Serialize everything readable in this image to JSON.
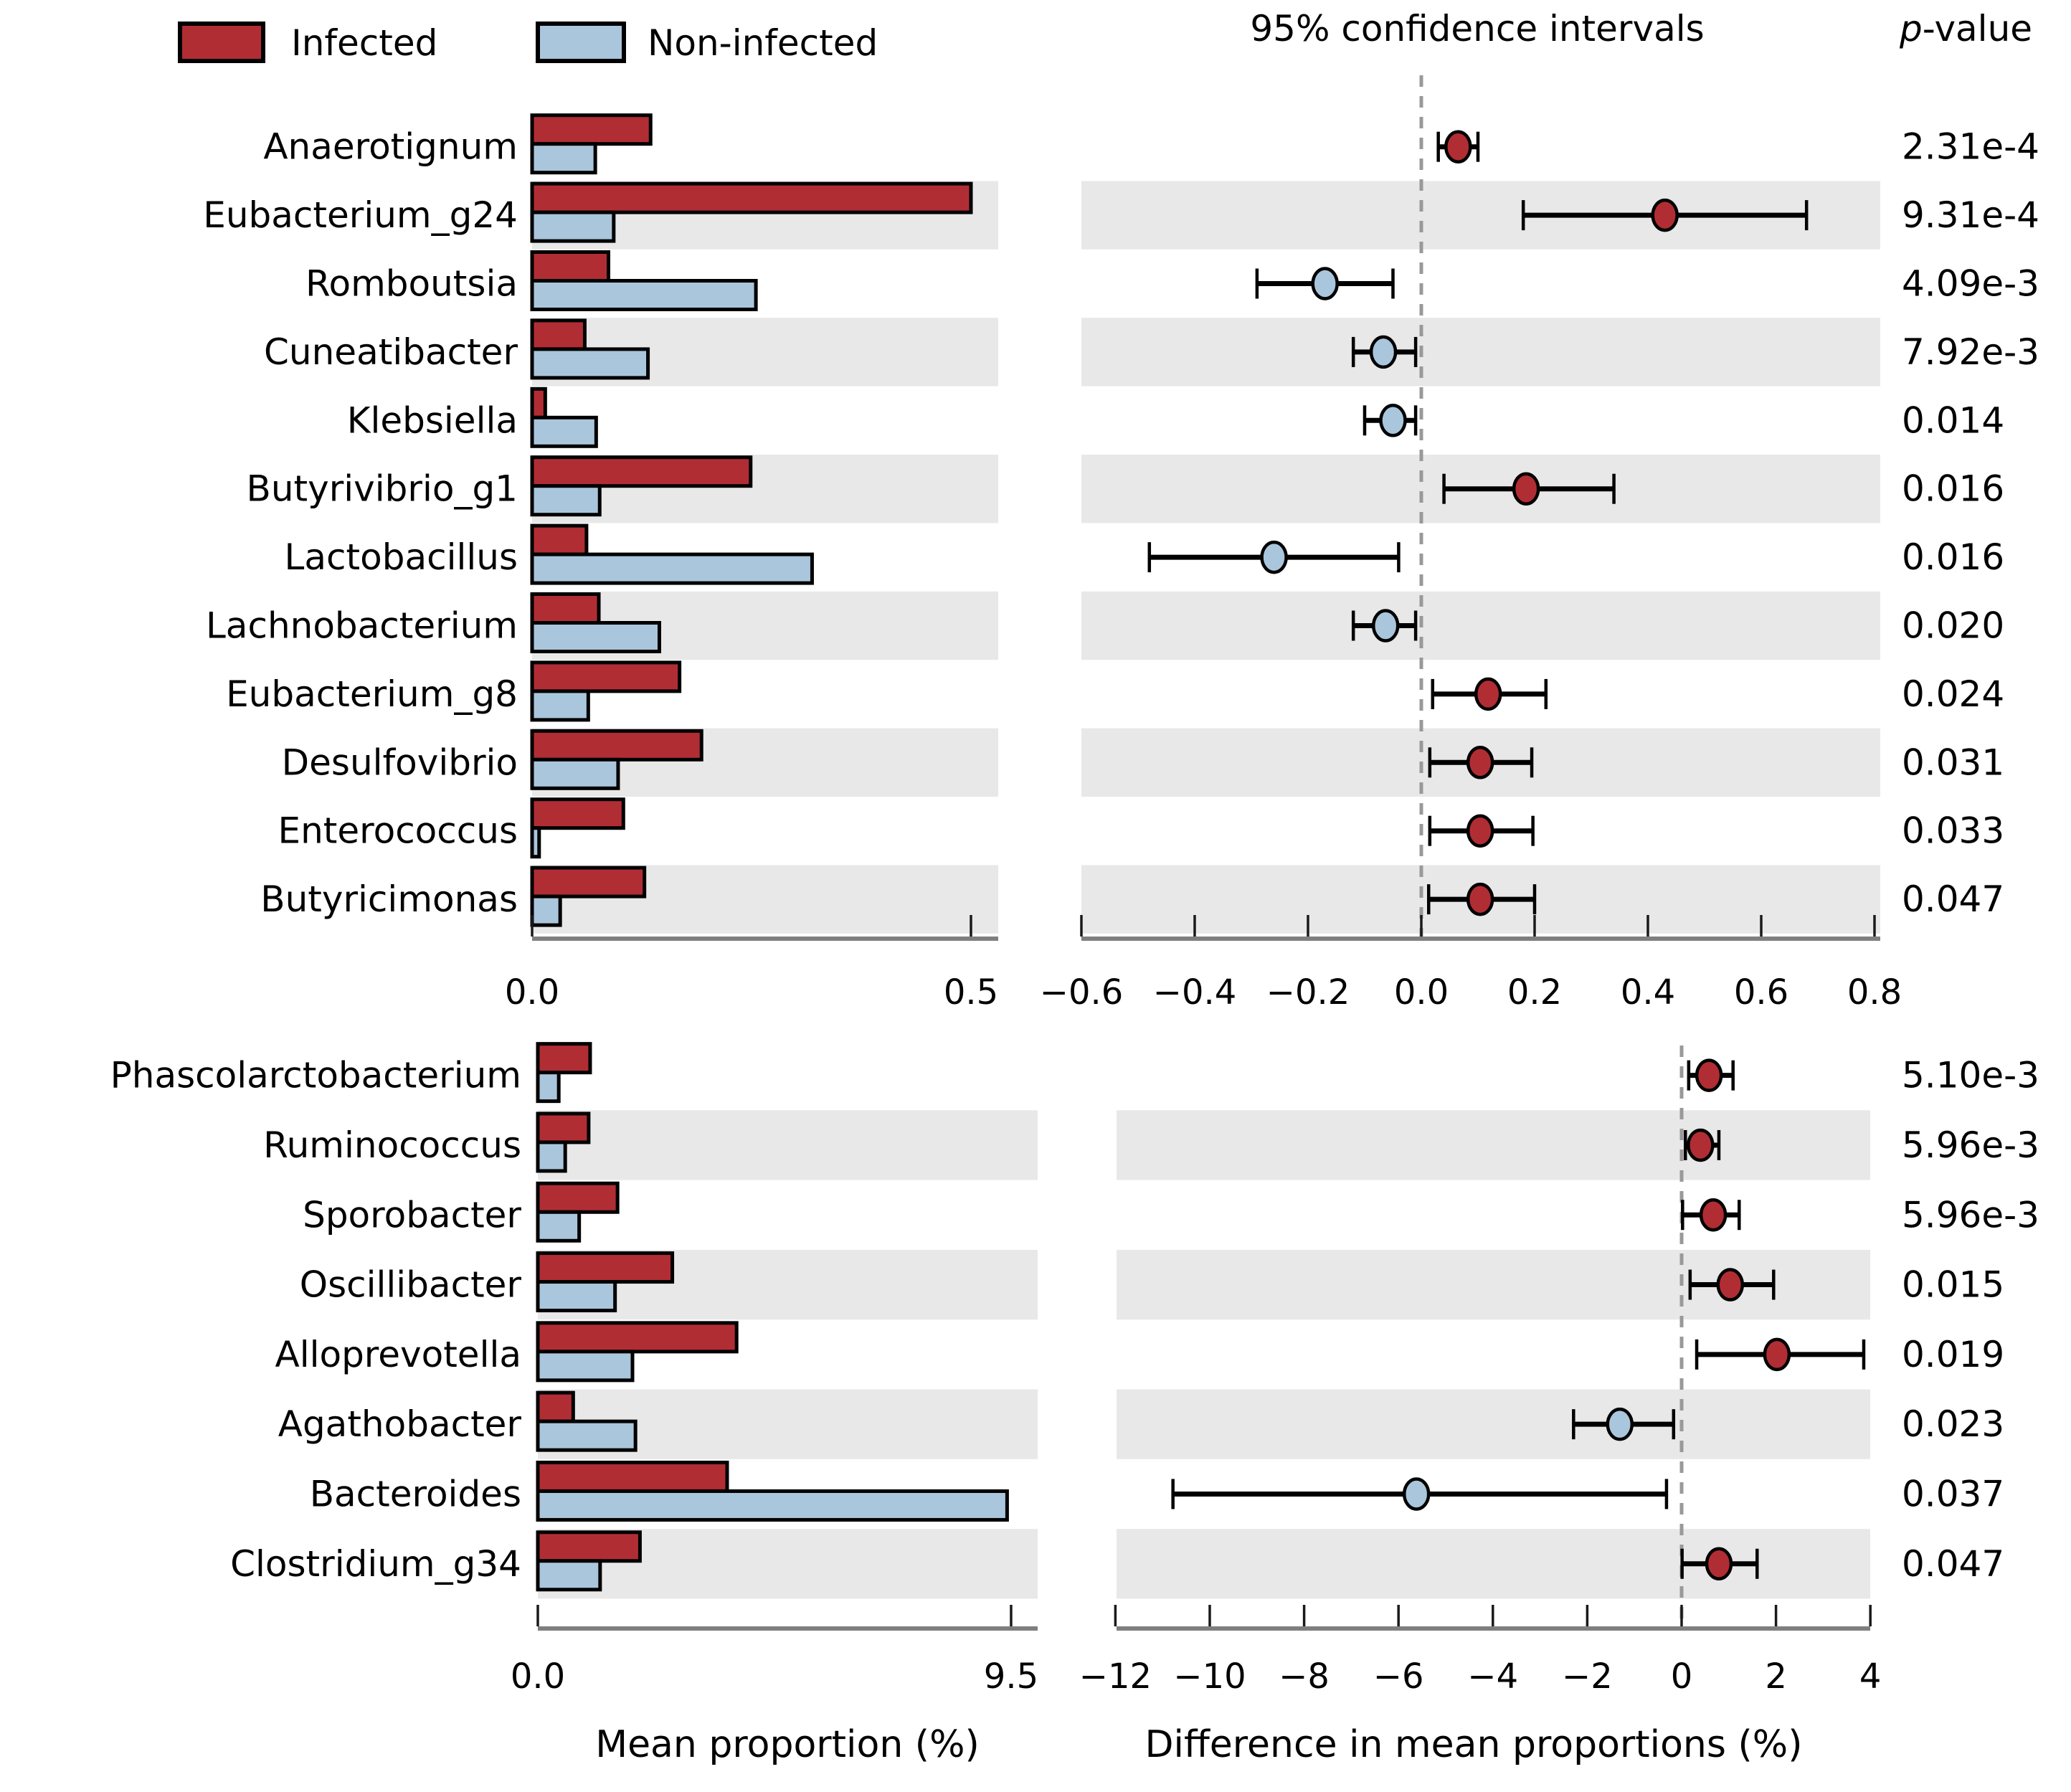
{
  "figure": {
    "legend": {
      "infected_label": "Infected",
      "noninfected_label": "Non-infected"
    },
    "header": {
      "ci_title": "95% confidence intervals",
      "pvalue_italic": "p",
      "pvalue_rest": "-value"
    },
    "captions": {
      "left": "Mean proportion (%)",
      "right": "Difference in mean proportions (%)"
    },
    "colors": {
      "infected": "#b12d34",
      "noninfected": "#a9c6dc",
      "stripe": "#e8e8e8",
      "spine": "#7f7f7f",
      "tick": "#1a1a1a",
      "zero_line": "#999999",
      "bar_edge": "#000000"
    }
  },
  "chart_data": [
    {
      "type": "extended-error-bar",
      "panel": "top",
      "legend_position": "top-left",
      "grid": false,
      "left_axis": {
        "unit": "percent",
        "range": [
          0,
          0.53
        ],
        "ticks": [
          {
            "v": 0,
            "label": "0.0"
          },
          {
            "v": 0.5,
            "label": "0.5"
          }
        ]
      },
      "diff_axis": {
        "unit": "percent",
        "range": [
          -0.61,
          0.81
        ],
        "zero_dashed_line": true,
        "ticks": [
          {
            "v": -0.6,
            "label": "−0.6"
          },
          {
            "v": -0.4,
            "label": "−0.4"
          },
          {
            "v": -0.2,
            "label": "−0.2"
          },
          {
            "v": 0.0,
            "label": "0.0"
          },
          {
            "v": 0.2,
            "label": "0.2"
          },
          {
            "v": 0.4,
            "label": "0.4"
          },
          {
            "v": 0.6,
            "label": "0.6"
          },
          {
            "v": 0.8,
            "label": "0.8"
          }
        ]
      },
      "rows": [
        {
          "taxon": "Anaerotignum",
          "infected_mean_pct": 0.135,
          "noninfected_mean_pct": 0.072,
          "diff": 0.065,
          "ci": [
            0.03,
            0.1
          ],
          "enriched": "infected",
          "p": "2.31e-4"
        },
        {
          "taxon": "Eubacterium_g24",
          "infected_mean_pct": 0.5,
          "noninfected_mean_pct": 0.093,
          "diff": 0.43,
          "ci": [
            0.18,
            0.68
          ],
          "enriched": "infected",
          "p": "9.31e-4"
        },
        {
          "taxon": "Romboutsia",
          "infected_mean_pct": 0.087,
          "noninfected_mean_pct": 0.255,
          "diff": -0.17,
          "ci": [
            -0.29,
            -0.05
          ],
          "enriched": "noninfected",
          "p": "4.09e-3"
        },
        {
          "taxon": "Cuneatibacter",
          "infected_mean_pct": 0.06,
          "noninfected_mean_pct": 0.132,
          "diff": -0.067,
          "ci": [
            -0.12,
            -0.01
          ],
          "enriched": "noninfected",
          "p": "7.92e-3"
        },
        {
          "taxon": "Klebsiella",
          "infected_mean_pct": 0.015,
          "noninfected_mean_pct": 0.073,
          "diff": -0.05,
          "ci": [
            -0.1,
            -0.01
          ],
          "enriched": "noninfected",
          "p": "0.014"
        },
        {
          "taxon": "Butyrivibrio_g1",
          "infected_mean_pct": 0.249,
          "noninfected_mean_pct": 0.077,
          "diff": 0.185,
          "ci": [
            0.04,
            0.34
          ],
          "enriched": "infected",
          "p": "0.016"
        },
        {
          "taxon": "Lactobacillus",
          "infected_mean_pct": 0.062,
          "noninfected_mean_pct": 0.319,
          "diff": -0.26,
          "ci": [
            -0.48,
            -0.04
          ],
          "enriched": "noninfected",
          "p": "0.016"
        },
        {
          "taxon": "Lachnobacterium",
          "infected_mean_pct": 0.076,
          "noninfected_mean_pct": 0.145,
          "diff": -0.063,
          "ci": [
            -0.12,
            -0.01
          ],
          "enriched": "noninfected",
          "p": "0.020"
        },
        {
          "taxon": "Eubacterium_g8",
          "infected_mean_pct": 0.168,
          "noninfected_mean_pct": 0.064,
          "diff": 0.118,
          "ci": [
            0.02,
            0.22
          ],
          "enriched": "infected",
          "p": "0.024"
        },
        {
          "taxon": "Desulfovibrio",
          "infected_mean_pct": 0.193,
          "noninfected_mean_pct": 0.098,
          "diff": 0.104,
          "ci": [
            0.015,
            0.195
          ],
          "enriched": "infected",
          "p": "0.031"
        },
        {
          "taxon": "Enterococcus",
          "infected_mean_pct": 0.104,
          "noninfected_mean_pct": 0.008,
          "diff": 0.104,
          "ci": [
            0.015,
            0.197
          ],
          "enriched": "infected",
          "p": "0.033"
        },
        {
          "taxon": "Butyricimonas",
          "infected_mean_pct": 0.128,
          "noninfected_mean_pct": 0.032,
          "diff": 0.104,
          "ci": [
            0.013,
            0.2
          ],
          "enriched": "infected",
          "p": "0.047"
        }
      ]
    },
    {
      "type": "extended-error-bar",
      "panel": "bottom",
      "grid": false,
      "left_axis": {
        "unit": "percent",
        "range": [
          0,
          10.03
        ],
        "ticks": [
          {
            "v": 0,
            "label": "0.0"
          },
          {
            "v": 9.5,
            "label": "9.5"
          }
        ]
      },
      "diff_axis": {
        "unit": "percent",
        "range": [
          -11.98,
          4.0
        ],
        "zero_dashed_line": true,
        "ticks": [
          {
            "v": -12,
            "label": "−12"
          },
          {
            "v": -10,
            "label": "−10"
          },
          {
            "v": -8,
            "label": "−8"
          },
          {
            "v": -6,
            "label": "−6"
          },
          {
            "v": -4,
            "label": "−4"
          },
          {
            "v": -2,
            "label": "−2"
          },
          {
            "v": 0,
            "label": "0"
          },
          {
            "v": 2,
            "label": "2"
          },
          {
            "v": 4,
            "label": "4"
          }
        ]
      },
      "rows": [
        {
          "taxon": "Phascolarctobacterium",
          "infected_mean_pct": 1.05,
          "noninfected_mean_pct": 0.42,
          "diff": 0.58,
          "ci": [
            0.15,
            1.09
          ],
          "enriched": "infected",
          "p": "5.10e-3"
        },
        {
          "taxon": "Ruminococcus",
          "infected_mean_pct": 1.02,
          "noninfected_mean_pct": 0.55,
          "diff": 0.4,
          "ci": [
            0.08,
            0.79
          ],
          "enriched": "infected",
          "p": "5.96e-3"
        },
        {
          "taxon": "Sporobacter",
          "infected_mean_pct": 1.6,
          "noninfected_mean_pct": 0.83,
          "diff": 0.67,
          "ci": [
            0.02,
            1.22
          ],
          "enriched": "infected",
          "p": "5.96e-3"
        },
        {
          "taxon": "Oscillibacter",
          "infected_mean_pct": 2.7,
          "noninfected_mean_pct": 1.55,
          "diff": 1.03,
          "ci": [
            0.18,
            1.95
          ],
          "enriched": "infected",
          "p": "0.015"
        },
        {
          "taxon": "Alloprevotella",
          "infected_mean_pct": 3.99,
          "noninfected_mean_pct": 1.9,
          "diff": 2.02,
          "ci": [
            0.32,
            3.86
          ],
          "enriched": "infected",
          "p": "0.019"
        },
        {
          "taxon": "Agathobacter",
          "infected_mean_pct": 0.71,
          "noninfected_mean_pct": 1.96,
          "diff": -1.31,
          "ci": [
            -2.29,
            -0.17
          ],
          "enriched": "noninfected",
          "p": "0.023"
        },
        {
          "taxon": "Bacteroides",
          "infected_mean_pct": 3.8,
          "noninfected_mean_pct": 9.42,
          "diff": -5.62,
          "ci": [
            -10.78,
            -0.32
          ],
          "enriched": "noninfected",
          "p": "0.037"
        },
        {
          "taxon": "Clostridium_g34",
          "infected_mean_pct": 2.05,
          "noninfected_mean_pct": 1.25,
          "diff": 0.79,
          "ci": [
            0.01,
            1.6
          ],
          "enriched": "infected",
          "p": "0.047"
        }
      ]
    }
  ]
}
